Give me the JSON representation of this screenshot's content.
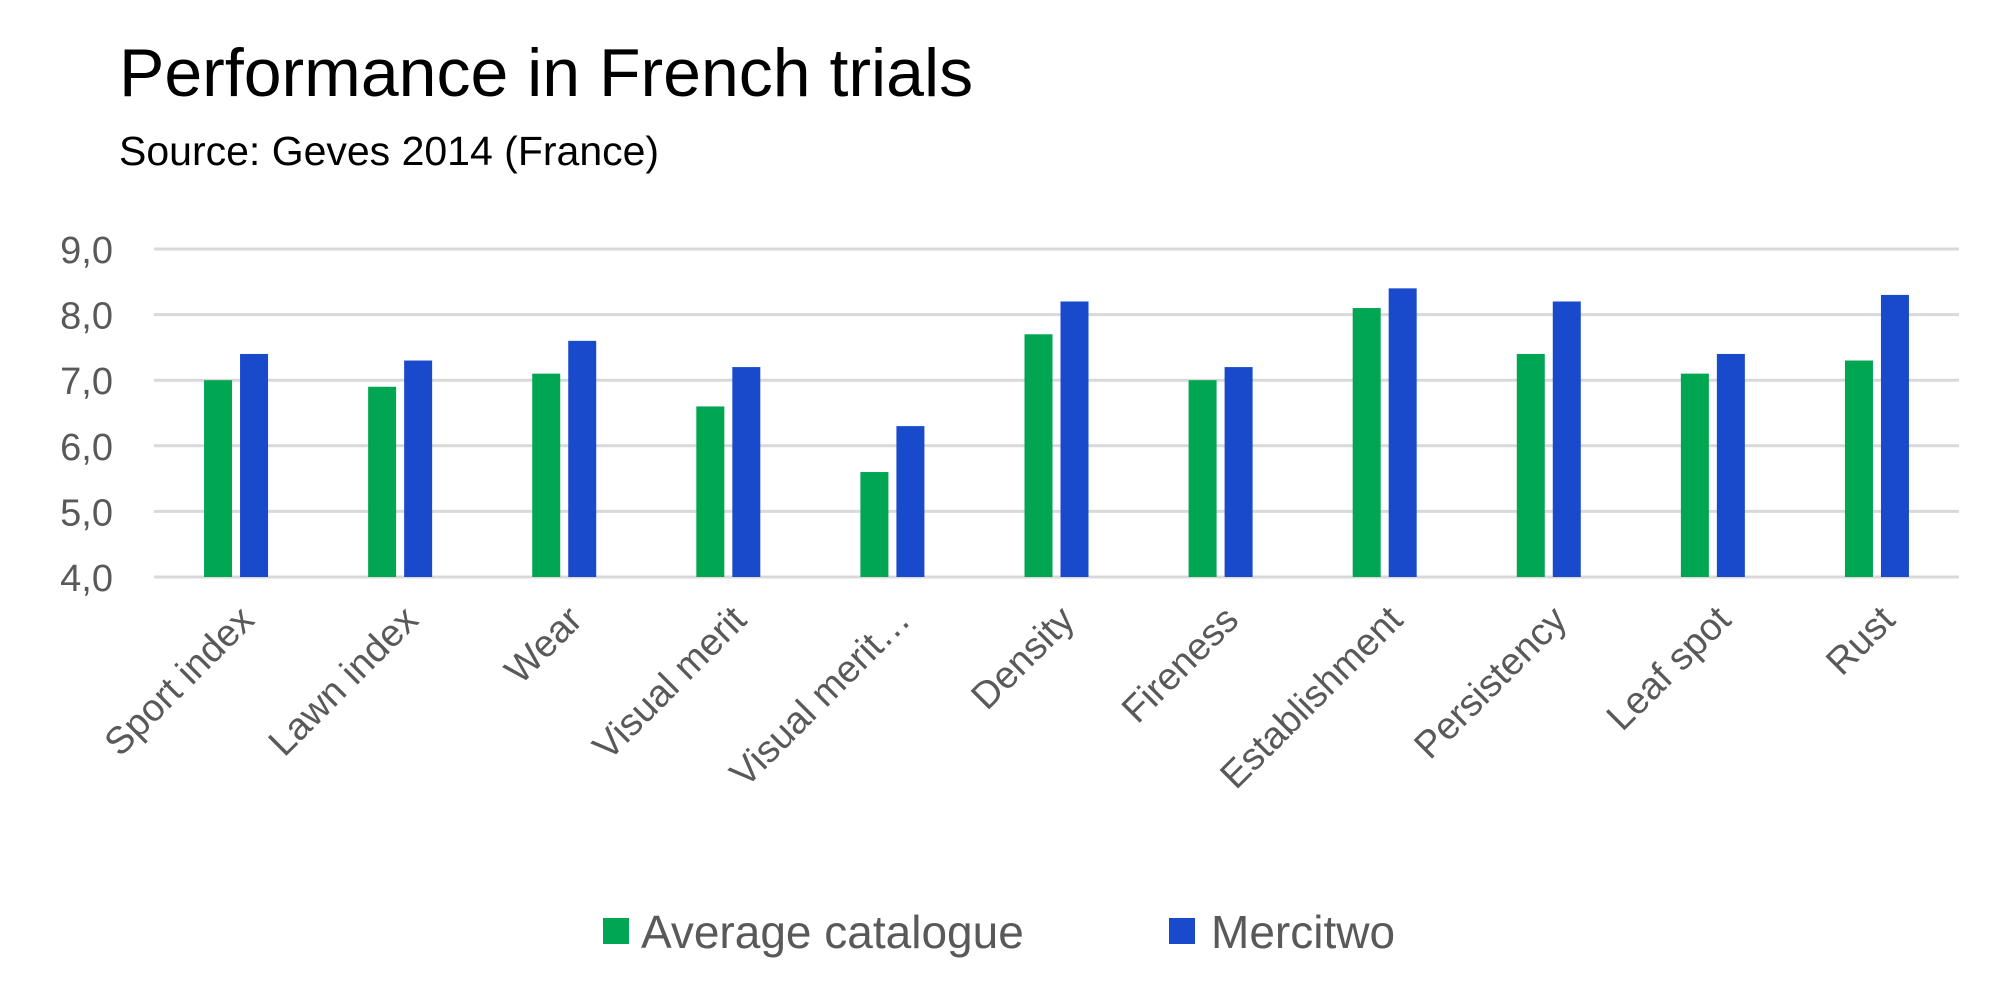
{
  "chart_data": {
    "type": "bar",
    "title": "Performance in French trials",
    "subtitle": "Source: Geves 2014 (France)",
    "xlabel": "",
    "ylabel": "",
    "ylim": [
      4,
      9
    ],
    "yticks": [
      "4,0",
      "5,0",
      "6,0",
      "7,0",
      "8,0",
      "9,0"
    ],
    "grid": true,
    "legend_position": "bottom",
    "categories": [
      "Sport index",
      "Lawn index",
      "Wear",
      "Visual merit",
      "Visual merit…",
      "Density",
      "Fireness",
      "Establishment",
      "Persistency",
      "Leaf spot",
      "Rust"
    ],
    "series": [
      {
        "name": "Average catalogue",
        "color": "#00A651",
        "values": [
          7.0,
          6.9,
          7.1,
          6.6,
          5.6,
          7.7,
          7.0,
          8.1,
          7.4,
          7.1,
          7.3
        ]
      },
      {
        "name": "Mercitwo",
        "color": "#1A4ACC",
        "values": [
          7.4,
          7.3,
          7.6,
          7.2,
          6.3,
          8.2,
          7.2,
          8.4,
          8.2,
          7.4,
          8.3
        ]
      }
    ]
  }
}
